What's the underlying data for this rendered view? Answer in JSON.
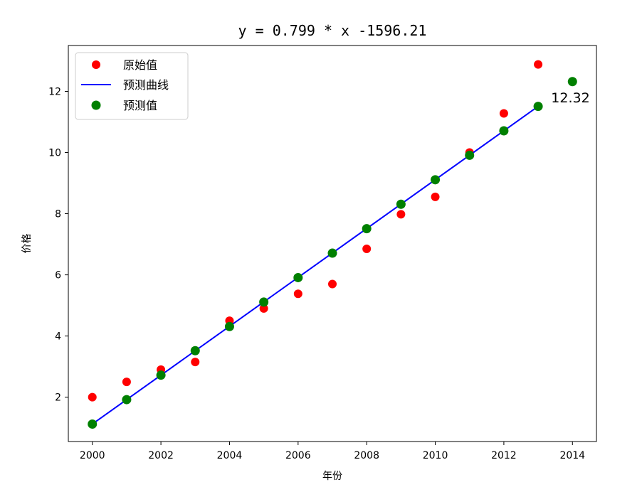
{
  "chart_data": {
    "type": "scatter",
    "title": "y = 0.799 * x -1596.21",
    "xlabel": "年份",
    "ylabel": "价格",
    "xlim": [
      1999.3,
      2014.7
    ],
    "ylim": [
      0.55,
      13.5
    ],
    "xticks": [
      2000,
      2002,
      2004,
      2006,
      2008,
      2010,
      2012,
      2014
    ],
    "yticks": [
      2,
      4,
      6,
      8,
      10,
      12
    ],
    "grid": false,
    "legend_position": "top-left",
    "series": [
      {
        "name": "原始值",
        "kind": "scatter",
        "color": "#ff0000",
        "x": [
          2000,
          2001,
          2002,
          2003,
          2004,
          2005,
          2006,
          2007,
          2008,
          2009,
          2010,
          2011,
          2012,
          2013
        ],
        "y": [
          2.0,
          2.5,
          2.9,
          3.15,
          4.5,
          4.9,
          5.38,
          5.7,
          6.85,
          7.98,
          8.55,
          10.0,
          11.28,
          12.88
        ]
      },
      {
        "name": "预测曲线",
        "kind": "line",
        "color": "#0000ff",
        "x": [
          2000,
          2013
        ],
        "y": [
          1.12,
          11.51
        ]
      },
      {
        "name": "预测值",
        "kind": "scatter",
        "color": "#008000",
        "x": [
          2000,
          2001,
          2002,
          2003,
          2004,
          2005,
          2006,
          2007,
          2008,
          2009,
          2010,
          2011,
          2012,
          2013,
          2014
        ],
        "y": [
          1.12,
          1.92,
          2.72,
          3.52,
          4.31,
          5.11,
          5.91,
          6.71,
          7.51,
          8.31,
          9.11,
          9.91,
          10.71,
          11.51,
          12.32
        ]
      }
    ],
    "annotations": [
      {
        "text": "12.32",
        "x": 2014,
        "y": 12.32
      }
    ]
  }
}
